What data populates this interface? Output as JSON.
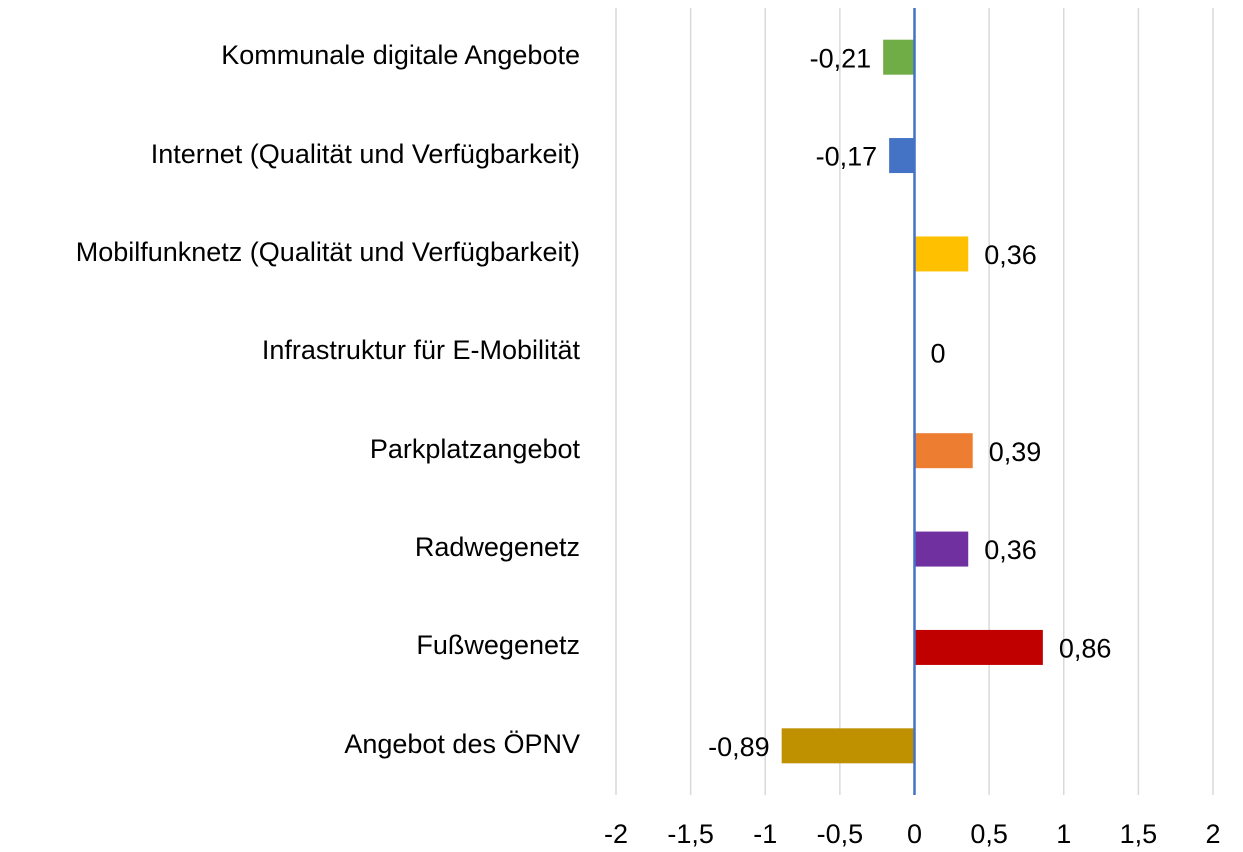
{
  "chart_data": {
    "type": "barh",
    "categories": [
      "Kommunale digitale Angebote",
      "Internet (Qualität und Verfügbarkeit)",
      "Mobilfunknetz (Qualität und Verfügbarkeit)",
      "Infrastruktur für E-Mobilität",
      "Parkplatzangebot",
      "Radwegenetz",
      "Fußwegenetz",
      "Angebot des ÖPNV"
    ],
    "values": [
      -0.21,
      -0.17,
      0.36,
      0,
      0.39,
      0.36,
      0.86,
      -0.89
    ],
    "value_labels": [
      "-0,21",
      "-0,17",
      "0,36",
      "0",
      "0,39",
      "0,36",
      "0,86",
      "-0,89"
    ],
    "colors": [
      "#70ad47",
      "#4472c4",
      "#ffc000",
      "#a5a5a5",
      "#ed7d31",
      "#7030a0",
      "#c00000",
      "#bf9000"
    ],
    "xlim": [
      -2,
      2
    ],
    "xticks": [
      -2,
      {
        "value": -1.5,
        "label": "-1,5"
      },
      -1,
      {
        "value": -0.5,
        "label": "-0,5"
      },
      0,
      {
        "value": 0.5,
        "label": "0,5"
      },
      1,
      {
        "value": 1.5,
        "label": "1,5"
      },
      2
    ],
    "grid": true
  }
}
